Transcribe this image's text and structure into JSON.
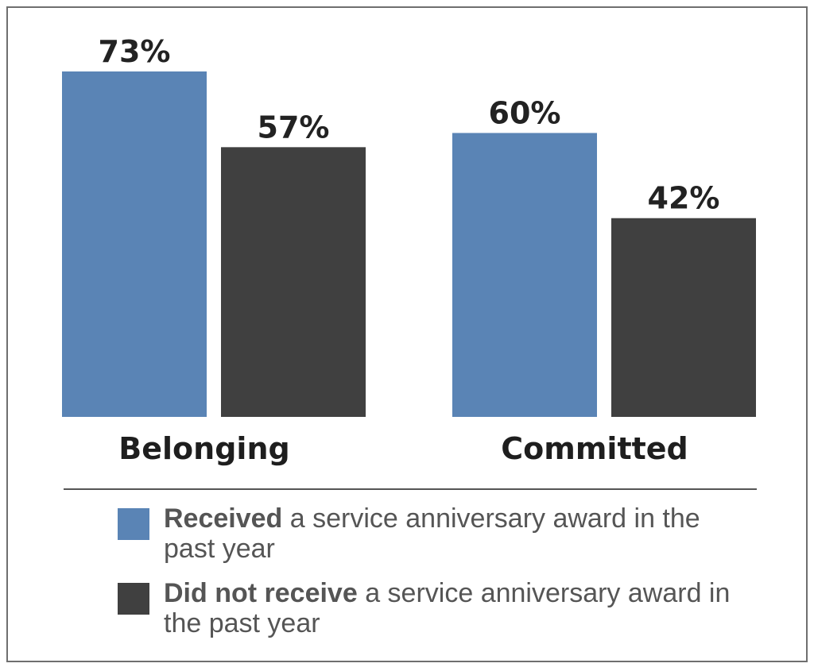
{
  "chart_data": {
    "type": "bar",
    "categories": [
      "Belonging",
      "Committed"
    ],
    "series": [
      {
        "name": "Received a service anniversary award in the past year",
        "values": [
          73,
          60
        ],
        "labels": [
          "73%",
          "60%"
        ],
        "color": "#5a84b5"
      },
      {
        "name": "Did not receive a service anniversary award in the past year",
        "values": [
          57,
          42
        ],
        "labels": [
          "57%",
          "42%"
        ],
        "color": "#404040"
      }
    ],
    "ylim": [
      0,
      100
    ],
    "grid": false,
    "legend_placement": "bottom"
  },
  "legend": [
    {
      "bold": "Received",
      "rest": " a service anniversary award in the past year",
      "color": "#5a84b5"
    },
    {
      "bold": "Did not receive",
      "rest": " a service anniversary award in the past year",
      "color": "#404040"
    }
  ]
}
